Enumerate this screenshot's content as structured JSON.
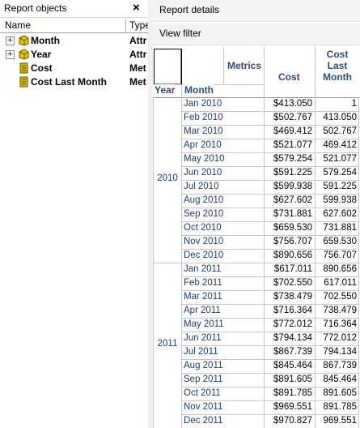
{
  "left_panel": {
    "title": "Report objects",
    "close_glyph": "×",
    "columns": {
      "name": "Name",
      "type": "Type"
    },
    "items": [
      {
        "name": "Month",
        "type": "Attr",
        "icon": "attribute-icon",
        "expander": "+"
      },
      {
        "name": "Year",
        "type": "Attr",
        "icon": "attribute-icon",
        "expander": "+"
      },
      {
        "name": "Cost",
        "type": "Met",
        "icon": "metric-icon"
      },
      {
        "name": "Cost Last Month",
        "type": "Met",
        "icon": "metric-icon"
      }
    ]
  },
  "right_panel": {
    "report_details": "Report details",
    "view_filter": "View filter"
  },
  "grid": {
    "headers": {
      "year": "Year",
      "month": "Month",
      "metrics": "Metrics",
      "cost": "Cost",
      "cost_last_month": "Cost Last Month"
    },
    "groups": [
      {
        "year": "2010",
        "rows": [
          {
            "month": "Jan 2010",
            "cost": "$413.050",
            "cost_last_month": "1"
          },
          {
            "month": "Feb 2010",
            "cost": "$502.767",
            "cost_last_month": "413.050"
          },
          {
            "month": "Mar 2010",
            "cost": "$469.412",
            "cost_last_month": "502.767"
          },
          {
            "month": "Apr 2010",
            "cost": "$521.077",
            "cost_last_month": "469.412"
          },
          {
            "month": "May 2010",
            "cost": "$579.254",
            "cost_last_month": "521.077"
          },
          {
            "month": "Jun 2010",
            "cost": "$591.225",
            "cost_last_month": "579.254"
          },
          {
            "month": "Jul 2010",
            "cost": "$599.938",
            "cost_last_month": "591.225"
          },
          {
            "month": "Aug 2010",
            "cost": "$627.602",
            "cost_last_month": "599.938"
          },
          {
            "month": "Sep 2010",
            "cost": "$731.881",
            "cost_last_month": "627.602"
          },
          {
            "month": "Oct 2010",
            "cost": "$659.530",
            "cost_last_month": "731.881"
          },
          {
            "month": "Nov 2010",
            "cost": "$756.707",
            "cost_last_month": "659.530"
          },
          {
            "month": "Dec 2010",
            "cost": "$890.656",
            "cost_last_month": "756.707"
          }
        ]
      },
      {
        "year": "2011",
        "rows": [
          {
            "month": "Jan 2011",
            "cost": "$617.011",
            "cost_last_month": "890.656"
          },
          {
            "month": "Feb 2011",
            "cost": "$702.550",
            "cost_last_month": "617.011"
          },
          {
            "month": "Mar 2011",
            "cost": "$738.479",
            "cost_last_month": "702.550"
          },
          {
            "month": "Apr 2011",
            "cost": "$716.364",
            "cost_last_month": "738.479"
          },
          {
            "month": "May 2011",
            "cost": "$772.012",
            "cost_last_month": "716.364"
          },
          {
            "month": "Jun 2011",
            "cost": "$794.134",
            "cost_last_month": "772.012"
          },
          {
            "month": "Jul 2011",
            "cost": "$867.739",
            "cost_last_month": "794.134"
          },
          {
            "month": "Aug 2011",
            "cost": "$845.464",
            "cost_last_month": "867.739"
          },
          {
            "month": "Sep 2011",
            "cost": "$891.605",
            "cost_last_month": "845.464"
          },
          {
            "month": "Oct 2011",
            "cost": "$891.785",
            "cost_last_month": "891.605"
          },
          {
            "month": "Nov 2011",
            "cost": "$969.551",
            "cost_last_month": "891.785"
          },
          {
            "month": "Dec 2011",
            "cost": "$970.827",
            "cost_last_month": "969.551"
          }
        ]
      }
    ]
  },
  "colors": {
    "header_text": "#2e4a7a",
    "month_text": "#1f3c70",
    "attribute_icon": "#e8c400",
    "metric_icon": "#d4b000"
  }
}
